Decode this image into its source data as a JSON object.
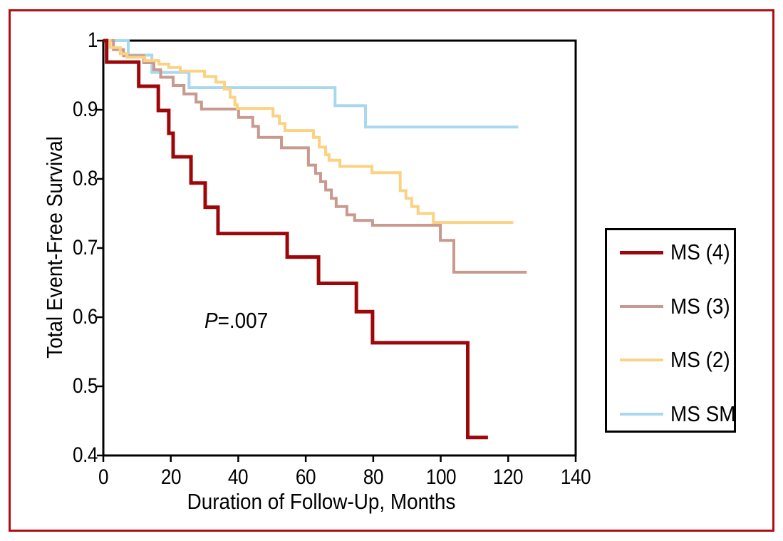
{
  "figure": {
    "frame_color": "#b00e13",
    "background_color": "#ffffff",
    "axis_color": "#000000"
  },
  "chart_data": {
    "type": "line",
    "chart_style": "kaplan-meier-step",
    "title": "",
    "xlabel": "Duration of Follow-Up, Months",
    "ylabel": "Total Event-Free Survival",
    "xlim": [
      0,
      140
    ],
    "ylim": [
      0.4,
      1.0
    ],
    "x_ticks": [
      0,
      20,
      40,
      60,
      80,
      100,
      120,
      140
    ],
    "y_ticks": [
      "1",
      "0.9",
      "0.8",
      "0.7",
      "0.6",
      "0.5",
      "0.4"
    ],
    "grid": false,
    "legend_position": "outside-right",
    "annotation": {
      "italic": "P",
      "rest": "=.007",
      "x_month": 30,
      "y_survival": 0.6
    },
    "series": [
      {
        "name": "MS SM",
        "color": "#a8d8f0",
        "line_width": 4,
        "end_month": 123,
        "points": [
          [
            0,
            1
          ],
          [
            7.4,
            0.979
          ],
          [
            14.4,
            0.954
          ],
          [
            25.4,
            0.932
          ],
          [
            68.7,
            0.906
          ],
          [
            77.7,
            0.875
          ]
        ]
      },
      {
        "name": "MS (3)",
        "color": "#c9998d",
        "line_width": 4,
        "end_month": 125.5,
        "points": [
          [
            0,
            1
          ],
          [
            3,
            0.987
          ],
          [
            6,
            0.978
          ],
          [
            12,
            0.968
          ],
          [
            15,
            0.958
          ],
          [
            17,
            0.947
          ],
          [
            20.7,
            0.935
          ],
          [
            23.9,
            0.923
          ],
          [
            27.5,
            0.911
          ],
          [
            29.1,
            0.901
          ],
          [
            40.1,
            0.889
          ],
          [
            44.3,
            0.876
          ],
          [
            46,
            0.86
          ],
          [
            52.8,
            0.845
          ],
          [
            60.8,
            0.82
          ],
          [
            62.9,
            0.808
          ],
          [
            64.4,
            0.796
          ],
          [
            65.9,
            0.784
          ],
          [
            67.6,
            0.772
          ],
          [
            69,
            0.76
          ],
          [
            72.2,
            0.748
          ],
          [
            74.5,
            0.74
          ],
          [
            79.8,
            0.733
          ],
          [
            99.9,
            0.711
          ],
          [
            103.9,
            0.665
          ]
        ]
      },
      {
        "name": "MS (2)",
        "color": "#fbd282",
        "line_width": 4,
        "end_month": 121.5,
        "points": [
          [
            0,
            1
          ],
          [
            2,
            0.99
          ],
          [
            5,
            0.981
          ],
          [
            7,
            0.976
          ],
          [
            12.3,
            0.971
          ],
          [
            16.5,
            0.966
          ],
          [
            19.4,
            0.961
          ],
          [
            22.8,
            0.956
          ],
          [
            30,
            0.948
          ],
          [
            33.4,
            0.94
          ],
          [
            35.9,
            0.93
          ],
          [
            37.6,
            0.918
          ],
          [
            39,
            0.907
          ],
          [
            39.7,
            0.902
          ],
          [
            50.3,
            0.891
          ],
          [
            52.2,
            0.88
          ],
          [
            53.8,
            0.87
          ],
          [
            62.3,
            0.86
          ],
          [
            64,
            0.846
          ],
          [
            65.9,
            0.835
          ],
          [
            66.9,
            0.827
          ],
          [
            70.1,
            0.818
          ],
          [
            79.6,
            0.809
          ],
          [
            88,
            0.783
          ],
          [
            89.7,
            0.772
          ],
          [
            91.4,
            0.76
          ],
          [
            93.3,
            0.75
          ],
          [
            97.8,
            0.737
          ]
        ]
      },
      {
        "name": "MS (4)",
        "color": "#9e070a",
        "line_width": 5,
        "end_month": 114,
        "points": [
          [
            0,
            1
          ],
          [
            1,
            0.969
          ],
          [
            10.5,
            0.934
          ],
          [
            16.3,
            0.899
          ],
          [
            19.4,
            0.866
          ],
          [
            20.7,
            0.832
          ],
          [
            26,
            0.794
          ],
          [
            30.2,
            0.759
          ],
          [
            34,
            0.721
          ],
          [
            54.5,
            0.687
          ],
          [
            63.8,
            0.649
          ],
          [
            75,
            0.608
          ],
          [
            79.8,
            0.563
          ],
          [
            108,
            0.426
          ]
        ]
      }
    ],
    "legend_order": [
      "MS (4)",
      "MS (3)",
      "MS (2)",
      "MS SM"
    ]
  }
}
